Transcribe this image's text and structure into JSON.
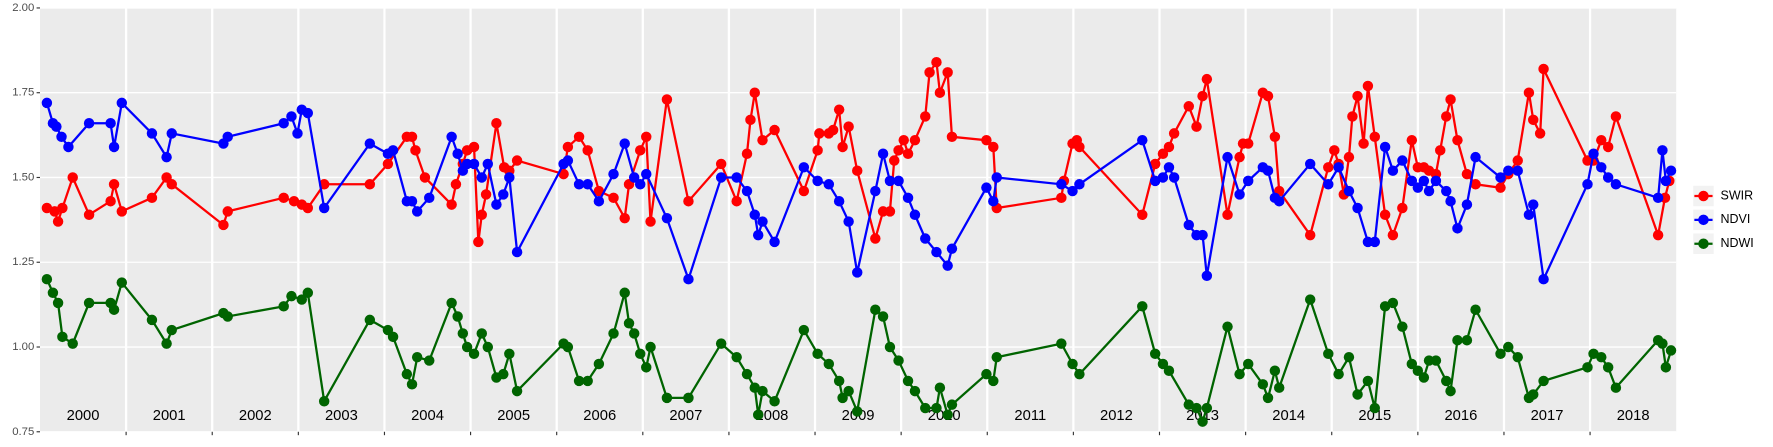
{
  "chart_data": {
    "type": "line",
    "xlim": [
      2000,
      2019
    ],
    "xticks": [
      {
        "value": 2000.5,
        "label": "2000"
      },
      {
        "value": 2001.5,
        "label": "2001"
      },
      {
        "value": 2002.5,
        "label": "2002"
      },
      {
        "value": 2003.5,
        "label": "2003"
      },
      {
        "value": 2004.5,
        "label": "2004"
      },
      {
        "value": 2005.5,
        "label": "2005"
      },
      {
        "value": 2006.5,
        "label": "2006"
      },
      {
        "value": 2007.5,
        "label": "2007"
      },
      {
        "value": 2008.5,
        "label": "2008"
      },
      {
        "value": 2009.5,
        "label": "2009"
      },
      {
        "value": 2010.5,
        "label": "2010"
      },
      {
        "value": 2011.5,
        "label": "2011"
      },
      {
        "value": 2012.5,
        "label": "2012"
      },
      {
        "value": 2013.5,
        "label": "2013"
      },
      {
        "value": 2014.5,
        "label": "2014"
      },
      {
        "value": 2015.5,
        "label": "2015"
      },
      {
        "value": 2016.5,
        "label": "2016"
      },
      {
        "value": 2017.5,
        "label": "2017"
      },
      {
        "value": 2018.5,
        "label": "2018"
      }
    ],
    "xgrid": [
      2001,
      2002,
      2003,
      2004,
      2005,
      2006,
      2007,
      2008,
      2009,
      2010,
      2011,
      2012,
      2013,
      2014,
      2015,
      2016,
      2017,
      2018
    ],
    "ylim": [
      0.75,
      2.0
    ],
    "yticks": [
      {
        "value": 0.75,
        "label": "0.75"
      },
      {
        "value": 1.0,
        "label": "1.00"
      },
      {
        "value": 1.25,
        "label": "1.25"
      },
      {
        "value": 1.5,
        "label": "1.50"
      },
      {
        "value": 1.75,
        "label": "1.75"
      },
      {
        "value": 2.0,
        "label": "2.00"
      }
    ],
    "grid": true,
    "legend": "right",
    "series": [
      {
        "name": "SWIR",
        "color": "#ff0000",
        "x": [
          2000.08,
          2000.17,
          2000.21,
          2000.26,
          2000.38,
          2000.57,
          2000.82,
          2000.86,
          2000.95,
          2001.3,
          2001.47,
          2001.53,
          2002.13,
          2002.18,
          2002.83,
          2002.95,
          2003.04,
          2003.11,
          2003.3,
          2003.83,
          2004.04,
          2004.26,
          2004.32,
          2004.36,
          2004.47,
          2004.78,
          2004.83,
          2004.91,
          2004.96,
          2005.04,
          2005.09,
          2005.13,
          2005.18,
          2005.3,
          2005.39,
          2005.45,
          2005.54,
          2006.08,
          2006.13,
          2006.26,
          2006.36,
          2006.49,
          2006.66,
          2006.79,
          2006.84,
          2006.97,
          2007.04,
          2007.09,
          2007.28,
          2007.53,
          2007.91,
          2008.09,
          2008.21,
          2008.25,
          2008.3,
          2008.39,
          2008.53,
          2008.87,
          2009.03,
          2009.05,
          2009.16,
          2009.21,
          2009.28,
          2009.32,
          2009.39,
          2009.49,
          2009.7,
          2009.79,
          2009.87,
          2009.92,
          2009.97,
          2010.03,
          2010.08,
          2010.16,
          2010.28,
          2010.33,
          2010.41,
          2010.45,
          2010.54,
          2010.59,
          2010.99,
          2011.07,
          2011.11,
          2011.86,
          2011.89,
          2011.99,
          2012.04,
          2012.07,
          2012.8,
          2012.95,
          2013.04,
          2013.11,
          2013.17,
          2013.34,
          2013.43,
          2013.5,
          2013.55,
          2013.79,
          2013.93,
          2013.97,
          2014.03,
          2014.2,
          2014.26,
          2014.34,
          2014.39,
          2014.75,
          2014.96,
          2015.03,
          2015.08,
          2015.14,
          2015.2,
          2015.24,
          2015.3,
          2015.37,
          2015.42,
          2015.5,
          2015.62,
          2015.71,
          2015.82,
          2015.93,
          2016.0,
          2016.07,
          2016.13,
          2016.21,
          2016.26,
          2016.33,
          2016.38,
          2016.46,
          2016.57,
          2016.67,
          2016.96,
          2017.05,
          2017.16,
          2017.29,
          2017.34,
          2017.42,
          2017.46,
          2017.97,
          2018.04,
          2018.13,
          2018.21,
          2018.3,
          2018.79,
          2018.87,
          2018.92
        ],
        "values": [
          1.41,
          1.4,
          1.37,
          1.41,
          1.5,
          1.39,
          1.43,
          1.48,
          1.4,
          1.44,
          1.5,
          1.48,
          1.36,
          1.4,
          1.44,
          1.43,
          1.42,
          1.41,
          1.48,
          1.48,
          1.54,
          1.62,
          1.62,
          1.58,
          1.5,
          1.42,
          1.48,
          1.54,
          1.58,
          1.59,
          1.31,
          1.39,
          1.45,
          1.66,
          1.53,
          1.52,
          1.55,
          1.51,
          1.59,
          1.62,
          1.58,
          1.46,
          1.44,
          1.38,
          1.48,
          1.58,
          1.62,
          1.37,
          1.73,
          1.43,
          1.54,
          1.43,
          1.57,
          1.67,
          1.75,
          1.61,
          1.64,
          1.46,
          1.58,
          1.63,
          1.63,
          1.64,
          1.7,
          1.59,
          1.65,
          1.52,
          1.32,
          1.4,
          1.4,
          1.55,
          1.58,
          1.61,
          1.57,
          1.61,
          1.68,
          1.81,
          1.84,
          1.75,
          1.81,
          1.62,
          1.61,
          1.59,
          1.41,
          1.44,
          1.49,
          1.6,
          1.61,
          1.59,
          1.39,
          1.54,
          1.57,
          1.59,
          1.63,
          1.71,
          1.65,
          1.74,
          1.79,
          1.39,
          1.56,
          1.6,
          1.6,
          1.75,
          1.74,
          1.62,
          1.46,
          1.33,
          1.53,
          1.58,
          1.54,
          1.45,
          1.56,
          1.68,
          1.74,
          1.6,
          1.77,
          1.62,
          1.39,
          1.33,
          1.41,
          1.61,
          1.53,
          1.53,
          1.52,
          1.51,
          1.58,
          1.68,
          1.73,
          1.61,
          1.51,
          1.48,
          1.47,
          1.51,
          1.55,
          1.75,
          1.67,
          1.63,
          1.82,
          1.55,
          1.55,
          1.61,
          1.59,
          1.68,
          1.33,
          1.44,
          1.49
        ]
      },
      {
        "name": "NDVI",
        "color": "#0000ff",
        "x": [
          2000.08,
          2000.15,
          2000.19,
          2000.25,
          2000.33,
          2000.57,
          2000.82,
          2000.86,
          2000.95,
          2001.3,
          2001.47,
          2001.53,
          2002.13,
          2002.18,
          2002.83,
          2002.92,
          2002.99,
          2003.04,
          2003.11,
          2003.3,
          2003.83,
          2004.04,
          2004.1,
          2004.26,
          2004.32,
          2004.38,
          2004.52,
          2004.78,
          2004.85,
          2004.91,
          2004.96,
          2005.04,
          2005.13,
          2005.2,
          2005.3,
          2005.38,
          2005.45,
          2005.54,
          2006.08,
          2006.13,
          2006.26,
          2006.36,
          2006.49,
          2006.66,
          2006.79,
          2006.9,
          2006.97,
          2007.04,
          2007.28,
          2007.53,
          2007.91,
          2008.09,
          2008.21,
          2008.3,
          2008.34,
          2008.39,
          2008.53,
          2008.87,
          2009.03,
          2009.16,
          2009.28,
          2009.39,
          2009.49,
          2009.7,
          2009.79,
          2009.87,
          2009.97,
          2010.08,
          2010.16,
          2010.28,
          2010.41,
          2010.54,
          2010.59,
          2010.99,
          2011.07,
          2011.11,
          2011.86,
          2011.99,
          2012.07,
          2012.8,
          2012.95,
          2013.04,
          2013.11,
          2013.17,
          2013.34,
          2013.43,
          2013.5,
          2013.55,
          2013.79,
          2013.93,
          2014.03,
          2014.2,
          2014.26,
          2014.34,
          2014.39,
          2014.75,
          2014.96,
          2015.08,
          2015.2,
          2015.3,
          2015.42,
          2015.5,
          2015.62,
          2015.71,
          2015.82,
          2015.93,
          2016.0,
          2016.07,
          2016.13,
          2016.21,
          2016.33,
          2016.38,
          2016.46,
          2016.57,
          2016.67,
          2016.96,
          2017.05,
          2017.16,
          2017.29,
          2017.34,
          2017.46,
          2017.97,
          2018.04,
          2018.13,
          2018.21,
          2018.3,
          2018.79,
          2018.84,
          2018.88,
          2018.94
        ],
        "values": [
          1.72,
          1.66,
          1.65,
          1.62,
          1.59,
          1.66,
          1.66,
          1.59,
          1.72,
          1.63,
          1.56,
          1.63,
          1.6,
          1.62,
          1.66,
          1.68,
          1.63,
          1.7,
          1.69,
          1.41,
          1.6,
          1.57,
          1.58,
          1.43,
          1.43,
          1.4,
          1.44,
          1.62,
          1.57,
          1.52,
          1.54,
          1.54,
          1.5,
          1.54,
          1.42,
          1.45,
          1.5,
          1.28,
          1.54,
          1.55,
          1.48,
          1.48,
          1.43,
          1.51,
          1.6,
          1.5,
          1.48,
          1.51,
          1.38,
          1.2,
          1.5,
          1.5,
          1.46,
          1.39,
          1.33,
          1.37,
          1.31,
          1.53,
          1.49,
          1.48,
          1.43,
          1.37,
          1.22,
          1.46,
          1.57,
          1.49,
          1.49,
          1.44,
          1.39,
          1.32,
          1.28,
          1.24,
          1.29,
          1.47,
          1.43,
          1.5,
          1.48,
          1.46,
          1.48,
          1.61,
          1.49,
          1.5,
          1.53,
          1.5,
          1.36,
          1.33,
          1.33,
          1.21,
          1.56,
          1.45,
          1.49,
          1.53,
          1.52,
          1.44,
          1.43,
          1.54,
          1.48,
          1.53,
          1.46,
          1.41,
          1.31,
          1.31,
          1.59,
          1.52,
          1.55,
          1.49,
          1.47,
          1.49,
          1.46,
          1.49,
          1.46,
          1.43,
          1.35,
          1.42,
          1.56,
          1.5,
          1.52,
          1.52,
          1.39,
          1.42,
          1.2,
          1.48,
          1.57,
          1.53,
          1.5,
          1.48,
          1.44,
          1.58,
          1.49,
          1.52
        ]
      },
      {
        "name": "NDWI",
        "color": "#006400",
        "x": [
          2000.08,
          2000.15,
          2000.21,
          2000.26,
          2000.38,
          2000.57,
          2000.82,
          2000.86,
          2000.95,
          2001.3,
          2001.47,
          2001.53,
          2002.13,
          2002.18,
          2002.83,
          2002.92,
          2003.04,
          2003.11,
          2003.3,
          2003.83,
          2004.04,
          2004.1,
          2004.26,
          2004.32,
          2004.38,
          2004.52,
          2004.78,
          2004.85,
          2004.91,
          2004.96,
          2005.04,
          2005.13,
          2005.2,
          2005.3,
          2005.38,
          2005.45,
          2005.54,
          2006.08,
          2006.13,
          2006.26,
          2006.36,
          2006.49,
          2006.66,
          2006.79,
          2006.84,
          2006.9,
          2006.97,
          2007.04,
          2007.09,
          2007.28,
          2007.53,
          2007.91,
          2008.09,
          2008.21,
          2008.3,
          2008.34,
          2008.39,
          2008.53,
          2008.87,
          2009.03,
          2009.16,
          2009.28,
          2009.32,
          2009.39,
          2009.49,
          2009.7,
          2009.79,
          2009.87,
          2009.97,
          2010.08,
          2010.16,
          2010.28,
          2010.41,
          2010.45,
          2010.54,
          2010.59,
          2010.99,
          2011.07,
          2011.11,
          2011.86,
          2011.99,
          2012.07,
          2012.8,
          2012.95,
          2013.04,
          2013.11,
          2013.34,
          2013.43,
          2013.5,
          2013.55,
          2013.79,
          2013.93,
          2014.03,
          2014.2,
          2014.26,
          2014.34,
          2014.39,
          2014.75,
          2014.96,
          2015.08,
          2015.2,
          2015.3,
          2015.42,
          2015.5,
          2015.62,
          2015.71,
          2015.82,
          2015.93,
          2016.0,
          2016.07,
          2016.13,
          2016.21,
          2016.33,
          2016.38,
          2016.46,
          2016.57,
          2016.67,
          2016.96,
          2017.05,
          2017.16,
          2017.29,
          2017.34,
          2017.46,
          2017.97,
          2018.04,
          2018.13,
          2018.21,
          2018.3,
          2018.79,
          2018.84,
          2018.88,
          2018.94
        ],
        "values": [
          1.2,
          1.16,
          1.13,
          1.03,
          1.01,
          1.13,
          1.13,
          1.11,
          1.19,
          1.08,
          1.01,
          1.05,
          1.1,
          1.09,
          1.12,
          1.15,
          1.14,
          1.16,
          0.84,
          1.08,
          1.05,
          1.03,
          0.92,
          0.89,
          0.97,
          0.96,
          1.13,
          1.09,
          1.04,
          1.0,
          0.98,
          1.04,
          1.0,
          0.91,
          0.92,
          0.98,
          0.87,
          1.01,
          1.0,
          0.9,
          0.9,
          0.95,
          1.04,
          1.16,
          1.07,
          1.04,
          0.98,
          0.94,
          1.0,
          0.85,
          0.85,
          1.01,
          0.97,
          0.92,
          0.88,
          0.8,
          0.87,
          0.84,
          1.05,
          0.98,
          0.95,
          0.9,
          0.85,
          0.87,
          0.81,
          1.11,
          1.09,
          1.0,
          0.96,
          0.9,
          0.87,
          0.82,
          0.82,
          0.88,
          0.8,
          0.83,
          0.92,
          0.9,
          0.97,
          1.01,
          0.95,
          0.92,
          1.12,
          0.98,
          0.95,
          0.93,
          0.83,
          0.82,
          0.78,
          0.82,
          1.06,
          0.92,
          0.95,
          0.89,
          0.85,
          0.93,
          0.88,
          1.14,
          0.98,
          0.92,
          0.97,
          0.86,
          0.9,
          0.82,
          1.12,
          1.13,
          1.06,
          0.95,
          0.93,
          0.91,
          0.96,
          0.96,
          0.9,
          0.87,
          1.02,
          1.02,
          1.11,
          0.98,
          1.0,
          0.97,
          0.85,
          0.86,
          0.9,
          0.94,
          0.98,
          0.97,
          0.94,
          0.88,
          1.02,
          1.01,
          0.94,
          0.99
        ]
      }
    ]
  }
}
